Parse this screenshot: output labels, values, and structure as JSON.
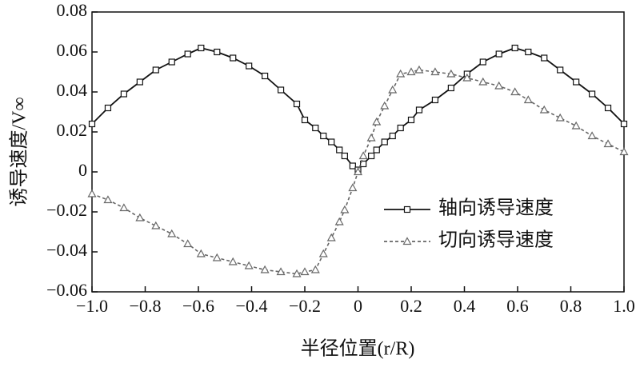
{
  "chart_data": {
    "type": "line",
    "xlabel": "半径位置(r/R)",
    "ylabel": "诱导速度/V∞",
    "x": [
      -1.0,
      -0.94,
      -0.88,
      -0.82,
      -0.76,
      -0.7,
      -0.64,
      -0.59,
      -0.53,
      -0.47,
      -0.41,
      -0.35,
      -0.29,
      -0.23,
      -0.2,
      -0.16,
      -0.13,
      -0.1,
      -0.07,
      -0.05,
      -0.02,
      0.0,
      0.02,
      0.05,
      0.07,
      0.1,
      0.13,
      0.16,
      0.2,
      0.23,
      0.29,
      0.35,
      0.41,
      0.47,
      0.53,
      0.59,
      0.64,
      0.7,
      0.76,
      0.82,
      0.88,
      0.94,
      1.0
    ],
    "series": [
      {
        "name": "轴向诱导速度",
        "color": "#111111",
        "dash": false,
        "marker": "square",
        "values": [
          0.024,
          0.032,
          0.039,
          0.045,
          0.051,
          0.055,
          0.059,
          0.062,
          0.06,
          0.057,
          0.053,
          0.048,
          0.041,
          0.034,
          0.026,
          0.022,
          0.018,
          0.015,
          0.011,
          0.008,
          0.003,
          0.001,
          0.004,
          0.008,
          0.011,
          0.015,
          0.018,
          0.022,
          0.026,
          0.031,
          0.036,
          0.042,
          0.049,
          0.055,
          0.059,
          0.062,
          0.06,
          0.057,
          0.051,
          0.045,
          0.039,
          0.032,
          0.024
        ]
      },
      {
        "name": "切向诱导速度",
        "color": "#666666",
        "dash": true,
        "marker": "triangle",
        "values": [
          -0.011,
          -0.014,
          -0.018,
          -0.023,
          -0.027,
          -0.031,
          -0.036,
          -0.041,
          -0.043,
          -0.045,
          -0.047,
          -0.049,
          -0.05,
          -0.051,
          -0.05,
          -0.049,
          -0.041,
          -0.033,
          -0.025,
          -0.019,
          -0.008,
          0.0,
          0.008,
          0.017,
          0.025,
          0.033,
          0.041,
          0.049,
          0.05,
          0.051,
          0.05,
          0.049,
          0.047,
          0.045,
          0.043,
          0.04,
          0.036,
          0.031,
          0.027,
          0.023,
          0.018,
          0.014,
          0.01
        ]
      }
    ],
    "xlim": [
      -1.0,
      1.0
    ],
    "xticks": [
      {
        "value": -1.0,
        "label": "−1.0"
      },
      {
        "value": -0.8,
        "label": "−0.8"
      },
      {
        "value": -0.6,
        "label": "−0.6"
      },
      {
        "value": -0.4,
        "label": "−0.4"
      },
      {
        "value": -0.2,
        "label": "−0.2"
      },
      0,
      0.2,
      0.4,
      0.6,
      0.8,
      {
        "value": 1.0,
        "label": "1.0"
      }
    ],
    "ylim": [
      -0.06,
      0.08
    ],
    "yticks": [
      {
        "value": -0.06,
        "label": "−0.06"
      },
      {
        "value": -0.04,
        "label": "−0.04"
      },
      {
        "value": -0.02,
        "label": "−0.02"
      },
      0,
      0.02,
      0.04,
      0.06,
      0.08
    ],
    "legend": "right"
  }
}
